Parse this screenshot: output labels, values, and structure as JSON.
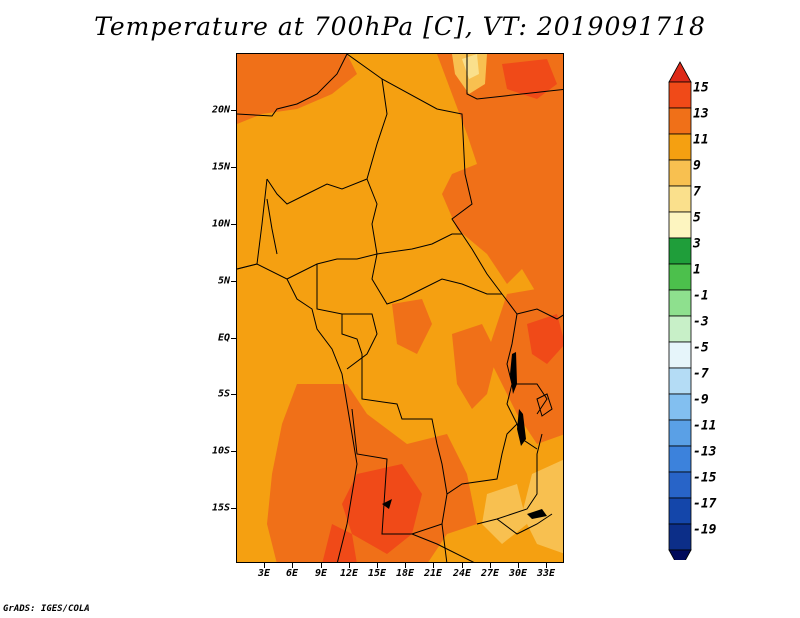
{
  "title": "Temperature at 700hPa [C], VT: 2019091718",
  "credit": "GrADS: IGES/COLA",
  "map": {
    "lat_labels": [
      "20N",
      "15N",
      "10N",
      "5N",
      "EQ",
      "5S",
      "10S",
      "15S"
    ],
    "lon_labels": [
      "3E",
      "6E",
      "9E",
      "12E",
      "15E",
      "18E",
      "21E",
      "24E",
      "27E",
      "30E",
      "33E"
    ]
  },
  "colorbar": {
    "labels": [
      "15",
      "13",
      "11",
      "9",
      "7",
      "5",
      "3",
      "1",
      "-1",
      "-3",
      "-5",
      "-7",
      "-9",
      "-11",
      "-13",
      "-15",
      "-17",
      "-19"
    ],
    "colors": [
      "#dd2a18",
      "#f04a18",
      "#f07018",
      "#f5a011",
      "#f8c050",
      "#fae08c",
      "#fdf5c0",
      "#1f9e3a",
      "#4cc04c",
      "#8ee08e",
      "#c8f0c8",
      "#e6f5fa",
      "#b4dcf5",
      "#82bff0",
      "#5aa0e6",
      "#3c82dc",
      "#2864c8",
      "#1446aa",
      "#0c2e88",
      "#000a5a"
    ]
  }
}
